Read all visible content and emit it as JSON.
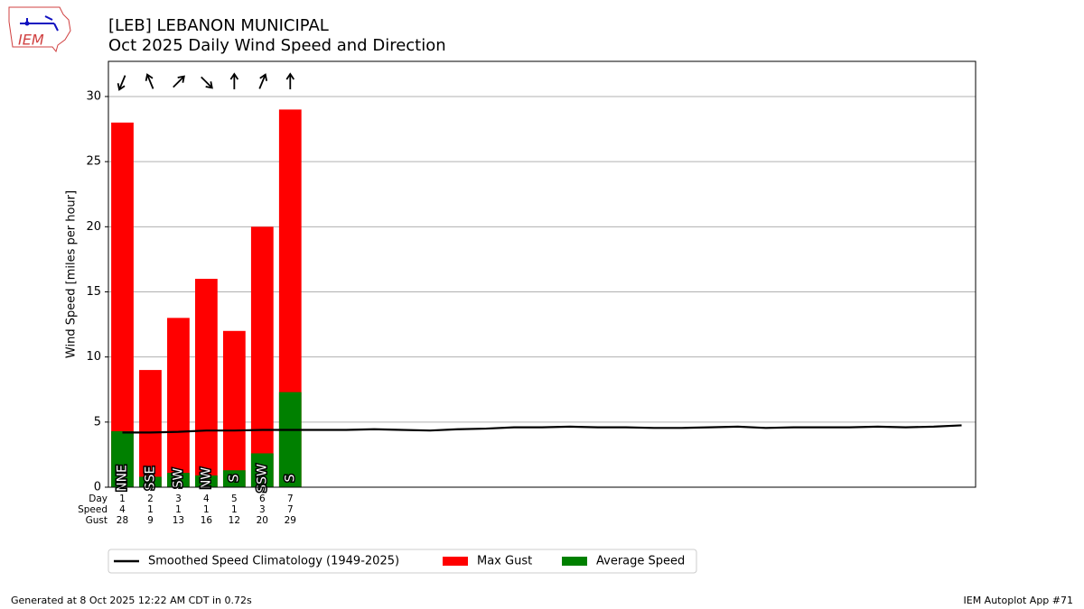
{
  "header": {
    "logo": "IEM"
  },
  "chart_data": {
    "type": "bar",
    "title": "[LEB] LEBANON MUNICIPAL",
    "subtitle": "Oct 2025 Daily Wind Speed and Direction",
    "y_label": "Wind Speed [miles per hour]",
    "x": [
      1,
      2,
      3,
      4,
      5,
      6,
      7
    ],
    "xlim": [
      0.5,
      31.5
    ],
    "ylim": [
      0,
      32.7
    ],
    "yticks": [
      0,
      5,
      10,
      15,
      20,
      25,
      30
    ],
    "grid": true,
    "series": [
      {
        "name": "Max Gust",
        "color": "#ff0000",
        "values": [
          28,
          9,
          13,
          16,
          12,
          20,
          29
        ]
      },
      {
        "name": "Average Speed",
        "color": "#008000",
        "values": [
          4.3,
          0.8,
          1.1,
          0.9,
          1.3,
          2.6,
          7.3
        ],
        "value_labels": [
          "4",
          "1",
          "1",
          "1",
          "1",
          "3",
          "7"
        ]
      }
    ],
    "directions": [
      "NNE",
      "SSE",
      "SW",
      "NW",
      "S",
      "SSW",
      "S"
    ],
    "direction_degrees": [
      22.5,
      157.5,
      225,
      315,
      180,
      202.5,
      180
    ],
    "table_row_labels": [
      "Day",
      "Speed",
      "Gust"
    ],
    "climatology": {
      "name": "Smoothed Speed Climatology (1949-2025)",
      "color": "#000000",
      "x": [
        1,
        2,
        3,
        4,
        5,
        6,
        7,
        8,
        9,
        10,
        11,
        12,
        13,
        14,
        15,
        16,
        17,
        18,
        19,
        20,
        21,
        22,
        23,
        24,
        25,
        26,
        27,
        28,
        29,
        30,
        31
      ],
      "values": [
        4.2,
        4.2,
        4.25,
        4.35,
        4.35,
        4.4,
        4.4,
        4.4,
        4.4,
        4.45,
        4.4,
        4.35,
        4.45,
        4.5,
        4.6,
        4.6,
        4.65,
        4.6,
        4.6,
        4.55,
        4.55,
        4.6,
        4.65,
        4.55,
        4.6,
        4.6,
        4.6,
        4.65,
        4.6,
        4.65,
        4.75
      ]
    },
    "legend_position": "bottom"
  },
  "footer": {
    "left": "Generated at 8 Oct 2025 12:22 AM CDT in 0.72s",
    "right": "IEM Autoplot App #71"
  }
}
